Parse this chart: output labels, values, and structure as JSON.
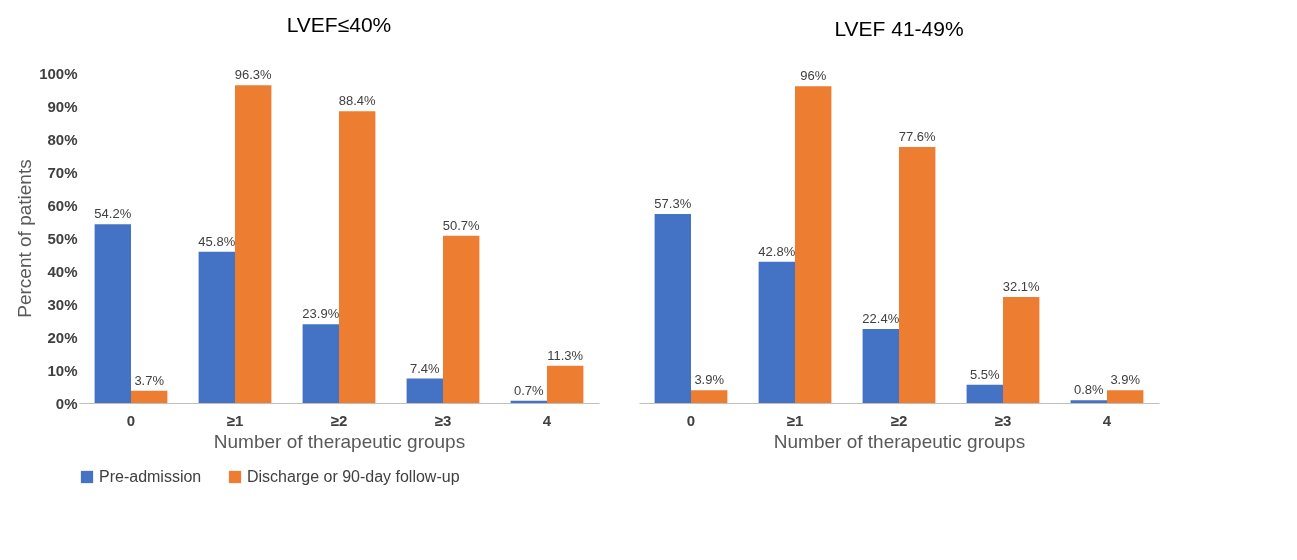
{
  "chart_data": [
    {
      "type": "bar",
      "title": "LVEF≤40%",
      "xlabel": "Number of therapeutic groups",
      "ylabel": "Percent of patients",
      "categories": [
        "0",
        "≥1",
        "≥2",
        "≥3",
        "4"
      ],
      "ylim": [
        0,
        100
      ],
      "yticks": [
        {
          "value": 0,
          "label": "0%"
        },
        {
          "value": 10,
          "label": "10%"
        },
        {
          "value": 20,
          "label": "20%"
        },
        {
          "value": 30,
          "label": "30%"
        },
        {
          "value": 40,
          "label": "40%"
        },
        {
          "value": 50,
          "label": "50%"
        },
        {
          "value": 60,
          "label": "60%"
        },
        {
          "value": 70,
          "label": "70%"
        },
        {
          "value": 80,
          "label": "80%"
        },
        {
          "value": 90,
          "label": "90%"
        },
        {
          "value": 100,
          "label": "100%"
        }
      ],
      "legend": "bottom",
      "grid": false,
      "series": [
        {
          "name": "Pre-admission",
          "color": "#4472c4",
          "values": [
            54.2,
            45.8,
            23.9,
            7.4,
            0.7
          ],
          "value_labels": [
            "54.2%",
            "45.8%",
            "23.9%",
            "7.4%",
            "0.7%"
          ]
        },
        {
          "name": "Discharge or 90-day follow-up",
          "color": "#ed7d31",
          "values": [
            3.7,
            96.3,
            88.4,
            50.7,
            11.3
          ],
          "value_labels": [
            "3.7%",
            "96.3%",
            "88.4%",
            "50.7%",
            "11.3%"
          ]
        }
      ]
    },
    {
      "type": "bar",
      "title": "LVEF 41-49%",
      "xlabel": "Number of therapeutic groups",
      "categories": [
        "0",
        "≥1",
        "≥2",
        "≥3",
        "4"
      ],
      "ylim": [
        0,
        100
      ],
      "tick_labels": "x",
      "legend": "bottom",
      "grid": false,
      "series": [
        {
          "name": "Pre-admission",
          "color": "#4472c4",
          "values": [
            57.3,
            42.8,
            22.4,
            5.5,
            0.8
          ],
          "value_labels": [
            "57.3%",
            "42.8%",
            "22.4%",
            "5.5%",
            "0.8%"
          ]
        },
        {
          "name": "Discharge or 90-day follow-up",
          "color": "#ed7d31",
          "values": [
            3.9,
            96,
            77.6,
            32.1,
            3.9
          ],
          "value_labels": [
            "3.9%",
            "96%",
            "77.6%",
            "32.1%",
            "3.9%"
          ]
        }
      ]
    }
  ]
}
